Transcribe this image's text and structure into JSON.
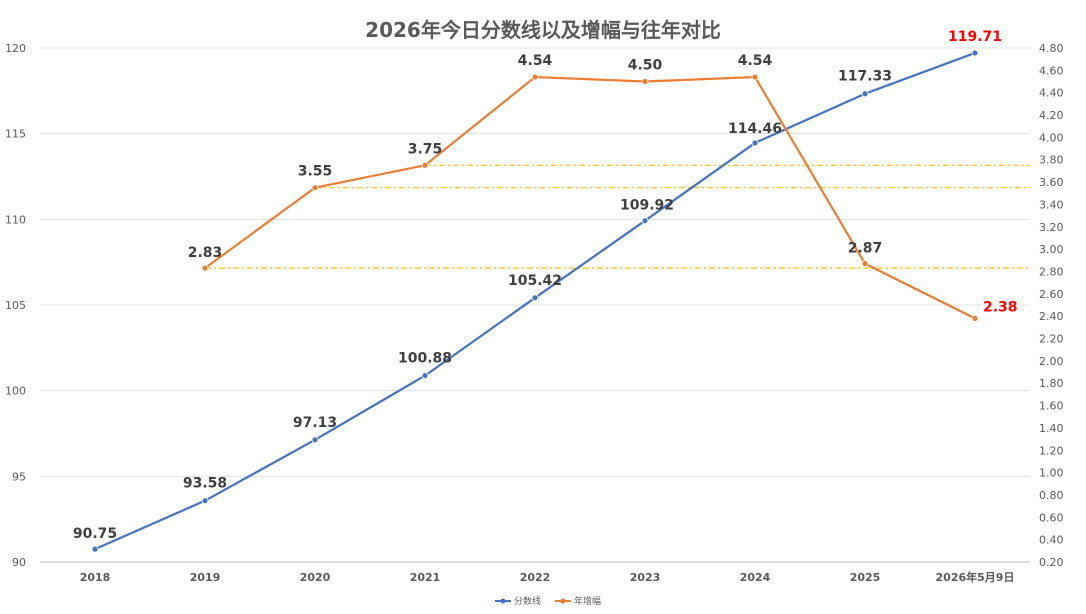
{
  "chart_data": {
    "type": "line",
    "title": "2026年今日分数线以及增幅与往年对比",
    "categories": [
      "2018",
      "2019",
      "2020",
      "2021",
      "2022",
      "2023",
      "2024",
      "2025",
      "2026年5月9日"
    ],
    "series": [
      {
        "name": "分数线",
        "axis": "left",
        "color": "#4472c4",
        "values": [
          90.75,
          93.58,
          97.13,
          100.88,
          105.42,
          109.92,
          114.46,
          117.33,
          119.71
        ],
        "labels": [
          "90.75",
          "93.58",
          "97.13",
          "100.88",
          "105.42",
          "109.92",
          "114.46",
          "117.33",
          "119.71"
        ]
      },
      {
        "name": "年增幅",
        "axis": "right",
        "color": "#ed7d31",
        "values": [
          null,
          2.83,
          3.55,
          3.75,
          4.54,
          4.5,
          4.54,
          2.87,
          2.38
        ],
        "labels": [
          "",
          "2.83",
          "3.55",
          "3.75",
          "4.54",
          "4.50",
          "4.54",
          "2.87",
          "2.38"
        ]
      }
    ],
    "highlight_label_color": "#ff0000",
    "y_left": {
      "range": [
        90,
        120
      ],
      "ticks": [
        "90",
        "95",
        "100",
        "105",
        "110",
        "115",
        "120"
      ]
    },
    "y_right": {
      "range": [
        0.2,
        4.8
      ],
      "ticks": [
        "0.20",
        "0.40",
        "0.60",
        "0.80",
        "1.00",
        "1.20",
        "1.40",
        "1.60",
        "1.80",
        "2.00",
        "2.20",
        "2.40",
        "2.60",
        "2.80",
        "3.00",
        "3.20",
        "3.40",
        "3.60",
        "3.80",
        "4.00",
        "4.20",
        "4.40",
        "4.60",
        "4.80"
      ]
    },
    "reference_lines": [
      {
        "axis": "right",
        "value": 2.83,
        "from_category": 1,
        "color": "#ffc000"
      },
      {
        "axis": "right",
        "value": 3.55,
        "from_category": 2,
        "color": "#ffc000"
      },
      {
        "axis": "right",
        "value": 3.75,
        "from_category": 3,
        "color": "#ffc000"
      }
    ],
    "grid": true,
    "legend_position": "bottom"
  }
}
